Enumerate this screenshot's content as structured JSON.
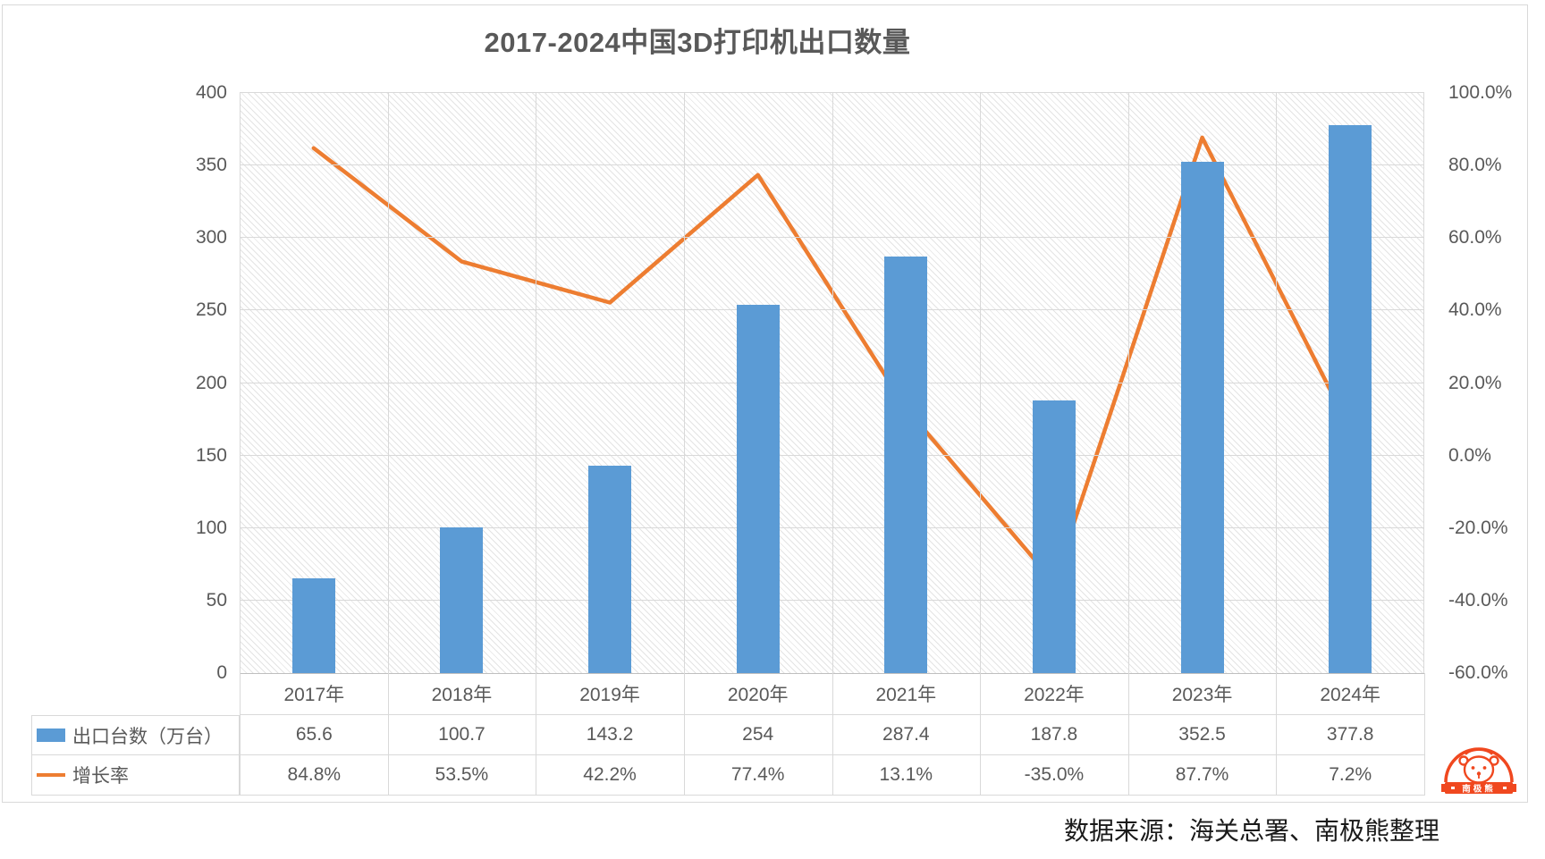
{
  "title": "2017-2024中国3D打印机出口数量",
  "source_note": "数据来源：海关总署、南极熊整理",
  "colors": {
    "bar": "#5B9BD5",
    "line": "#ED7D31",
    "grid": "#D9D9D9",
    "axis_line": "#BFBFBF",
    "table_border": "#D9D9D9",
    "text": "#595959",
    "title_text": "#595959",
    "source_text": "#1A1A1A",
    "logo": "#F0481F",
    "plot_hatch": "#E4E4E4"
  },
  "chart_data": {
    "type": "combo-bar-line",
    "title": "2017-2024中国3D打印机出口数量",
    "categories": [
      "2017年",
      "2018年",
      "2019年",
      "2020年",
      "2021年",
      "2022年",
      "2023年",
      "2024年"
    ],
    "series": [
      {
        "name": "出口台数（万台）",
        "type": "bar",
        "axis": "left",
        "values": [
          65.6,
          100.7,
          143.2,
          254,
          287.4,
          187.8,
          352.5,
          377.8
        ],
        "values_display": [
          "65.6",
          "100.7",
          "143.2",
          "254",
          "287.4",
          "187.8",
          "352.5",
          "377.8"
        ]
      },
      {
        "name": "增长率",
        "type": "line",
        "axis": "right",
        "values": [
          84.8,
          53.5,
          42.2,
          77.4,
          13.1,
          -35.0,
          87.7,
          7.2
        ],
        "values_display": [
          "84.8%",
          "53.5%",
          "42.2%",
          "77.4%",
          "13.1%",
          "-35.0%",
          "87.7%",
          "7.2%"
        ]
      }
    ],
    "axes": {
      "left": {
        "min": 0,
        "max": 400,
        "step": 50,
        "tick_labels_top_to_bottom": [
          "400",
          "350",
          "300",
          "250",
          "200",
          "150",
          "100",
          "50",
          "0"
        ]
      },
      "right": {
        "min": -60,
        "max": 100,
        "step": 20,
        "tick_labels_top_to_bottom": [
          "100.0%",
          "80.0%",
          "60.0%",
          "40.0%",
          "20.0%",
          "0.0%",
          "-20.0%",
          "-40.0%",
          "-60.0%"
        ]
      }
    },
    "grid": true,
    "plot_background": "diagonal-hatch",
    "legend_position": "data-table-left"
  },
  "logo": {
    "banner_text": "南极熊"
  }
}
